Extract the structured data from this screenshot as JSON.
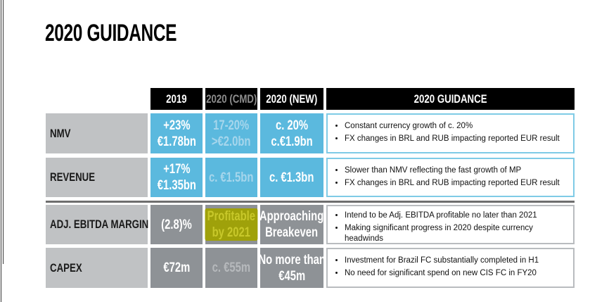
{
  "title": "2020 GUIDANCE",
  "columns": [
    "2019",
    "2020 (CMD)",
    "2020 (NEW)",
    "2020 GUIDANCE"
  ],
  "rows": [
    {
      "label": "NMV",
      "v2019": [
        "+23%",
        "€1.78bn"
      ],
      "cmd": [
        "17-20%",
        ">€2.0bn"
      ],
      "new": [
        "c. 20%",
        "c.€1.9bn"
      ],
      "guidance": [
        "Constant currency growth of c. 20%",
        "FX changes in BRL and RUB impacting reported EUR result"
      ]
    },
    {
      "label": "REVENUE",
      "v2019": [
        "+17%",
        "€1.35bn"
      ],
      "cmd": [
        "c. €1.5bn"
      ],
      "new": [
        "c. €1.3bn"
      ],
      "guidance": [
        "Slower than NMV reflecting the fast growth of MP",
        "FX changes in BRL and RUB impacting reported EUR result"
      ]
    },
    {
      "label": "ADJ. EBITDA MARGIN",
      "v2019": [
        "(2.8)%"
      ],
      "cmd": [
        "Profitable",
        "by 2021"
      ],
      "new": [
        "Approaching",
        "Breakeven"
      ],
      "guidance": [
        "Intend to be Adj. EBITDA profitable no later than 2021",
        "Making significant progress in 2020 despite currency headwinds"
      ]
    },
    {
      "label": "CAPEX",
      "v2019": [
        "€72m"
      ],
      "cmd": [
        "c. €55m"
      ],
      "new": [
        "No more than",
        "€45m"
      ],
      "guidance": [
        "Investment for Brazil FC substantially completed in H1",
        "No need for significant spend on new CIS FC in FY20"
      ]
    }
  ],
  "colors": {
    "blue": "#5bb9de",
    "grey": "#8e9296",
    "label_bg": "#c0c2c4",
    "header": "#000000",
    "highlight": "#9fa10a"
  }
}
